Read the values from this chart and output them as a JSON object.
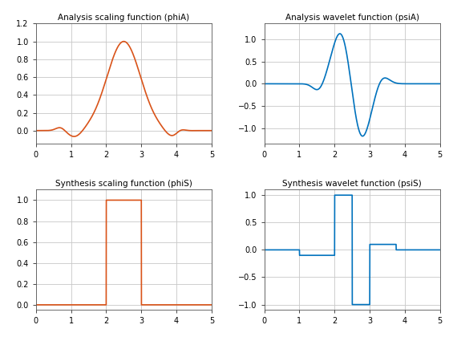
{
  "title_phiA": "Analysis scaling function (phiA)",
  "title_psiA": "Analysis wavelet function (psiA)",
  "title_phiS": "Synthesis scaling function (phiS)",
  "title_psiS": "Synthesis wavelet function (psiS)",
  "color_orange": "#D95319",
  "color_blue": "#0072BD",
  "xlim": [
    0,
    5
  ],
  "xticks": [
    0,
    1,
    2,
    3,
    4,
    5
  ],
  "background": "#ffffff",
  "grid_color": "#c8c8c8",
  "figsize": [
    5.6,
    4.2
  ],
  "dpi": 100
}
